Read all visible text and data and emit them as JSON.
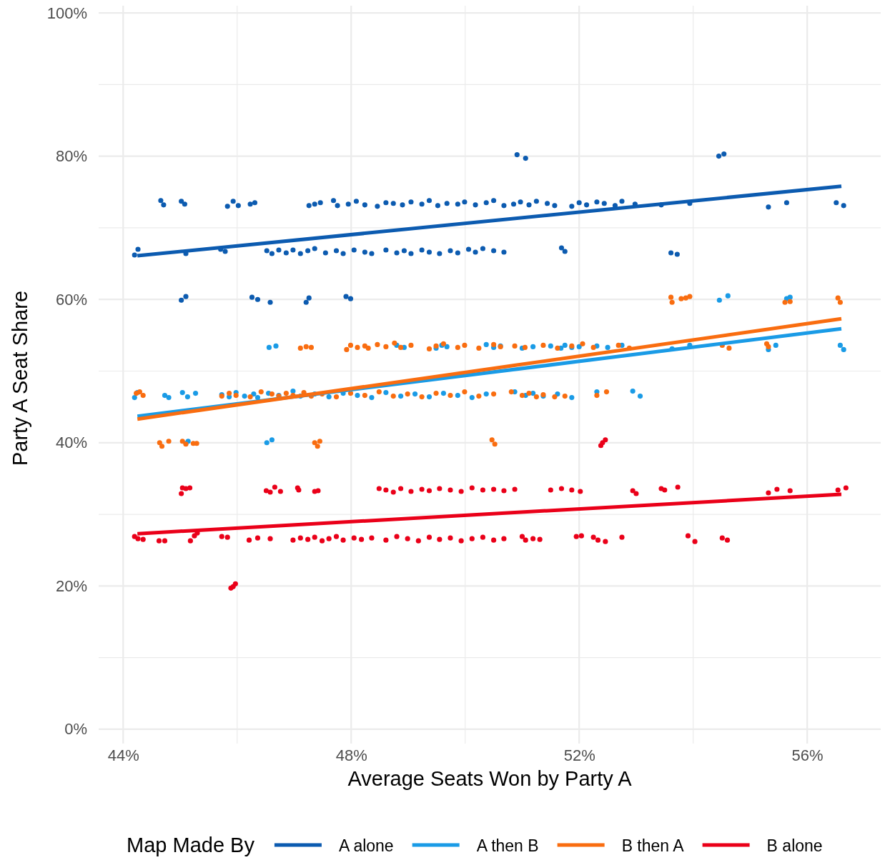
{
  "chart_data": {
    "type": "scatter",
    "xlabel": "Average Seats Won by Party A",
    "ylabel": "Party A Seat Share",
    "legend_title": "Map Made By",
    "legend": "bottom",
    "grid": true,
    "marker": "circle",
    "xlim": [
      43.57,
      57.29
    ],
    "ylim": [
      -2,
      101
    ],
    "xticks": [
      {
        "value": 44,
        "label": "44%"
      },
      {
        "value": 46,
        "label": null
      },
      {
        "value": 48,
        "label": "48%"
      },
      {
        "value": 50,
        "label": null
      },
      {
        "value": 52,
        "label": "52%"
      },
      {
        "value": 54,
        "label": null
      },
      {
        "value": 56,
        "label": "56%"
      }
    ],
    "yticks": [
      {
        "value": 0,
        "label": "0%"
      },
      {
        "value": 10,
        "label": null
      },
      {
        "value": 20,
        "label": "20%"
      },
      {
        "value": 30,
        "label": null
      },
      {
        "value": 40,
        "label": "40%"
      },
      {
        "value": 50,
        "label": null
      },
      {
        "value": 60,
        "label": "60%"
      },
      {
        "value": 70,
        "label": null
      },
      {
        "value": 80,
        "label": "80%"
      },
      {
        "value": 90,
        "label": null
      },
      {
        "value": 100,
        "label": "100%"
      }
    ],
    "series": [
      {
        "name": "A alone",
        "color": "#0c5bb0",
        "x": [
          50.91,
          51.06,
          54.45,
          54.54,
          44.66,
          44.71,
          45.02,
          45.08,
          45.83,
          45.93,
          46.02,
          46.23,
          46.31,
          47.26,
          47.36,
          47.46,
          47.69,
          47.76,
          47.95,
          48.09,
          48.24,
          48.46,
          48.61,
          48.74,
          48.9,
          49.05,
          49.24,
          49.37,
          49.52,
          49.68,
          49.87,
          49.99,
          50.18,
          50.37,
          50.5,
          50.68,
          50.85,
          50.97,
          51.12,
          51.25,
          51.44,
          51.57,
          51.87,
          52,
          52.13,
          52.31,
          52.44,
          52.63,
          52.75,
          52.98,
          53.44,
          53.94,
          55.32,
          55.64,
          56.51,
          56.64,
          44.2,
          44.26,
          45.1,
          45.71,
          45.79,
          46.52,
          46.61,
          46.73,
          46.86,
          46.98,
          47.11,
          47.24,
          47.36,
          47.55,
          47.74,
          47.86,
          48.05,
          48.24,
          48.36,
          48.61,
          48.8,
          48.93,
          49.05,
          49.24,
          49.37,
          49.55,
          49.74,
          49.87,
          50.06,
          50.18,
          50.31,
          50.5,
          50.68,
          51.69,
          51.75,
          53.61,
          53.72,
          45.02,
          45.1,
          46.26,
          46.36,
          46.58,
          47.21,
          47.26,
          47.91,
          47.99
        ],
        "values": [
          80.2,
          79.7,
          80,
          80.3,
          73.8,
          73.2,
          73.7,
          73.3,
          73,
          73.7,
          73.1,
          73.3,
          73.5,
          73.1,
          73.3,
          73.5,
          73.8,
          73.1,
          73.3,
          73.7,
          73.2,
          73,
          73.5,
          73.4,
          73.2,
          73.6,
          73.3,
          73.8,
          73.1,
          73.4,
          73.3,
          73.6,
          73.2,
          73.5,
          73.8,
          73.1,
          73.3,
          73.6,
          73.2,
          73.7,
          73.4,
          73.1,
          73,
          73.5,
          73.2,
          73.6,
          73.4,
          73.1,
          73.7,
          73.3,
          73.2,
          73.4,
          72.9,
          73.5,
          73.5,
          73.1,
          66.2,
          67,
          66.4,
          67,
          66.7,
          66.8,
          66.4,
          66.9,
          66.5,
          66.9,
          66.4,
          66.8,
          67.1,
          66.5,
          66.8,
          66.4,
          66.9,
          66.6,
          66.4,
          66.9,
          66.5,
          66.8,
          66.4,
          66.9,
          66.6,
          66.4,
          66.8,
          66.5,
          67,
          66.6,
          67.1,
          66.8,
          66.6,
          67.2,
          66.7,
          66.5,
          66.3,
          59.9,
          60.4,
          60.3,
          60,
          59.6,
          59.6,
          60.2,
          60.4,
          60.1
        ]
      },
      {
        "name": "A then B",
        "color": "#1a9be6",
        "x": [
          54.46,
          54.61,
          55.64,
          55.7,
          46.56,
          46.68,
          48.8,
          48.93,
          49.49,
          49.59,
          49.68,
          50.37,
          50.5,
          50.62,
          51,
          51.19,
          51.5,
          51.68,
          51.75,
          51.87,
          52,
          52.31,
          52.5,
          52.75,
          53.63,
          53.94,
          55.32,
          55.45,
          56.58,
          56.64,
          44.2,
          44.25,
          44.73,
          44.8,
          45.04,
          45.13,
          45.27,
          45.73,
          45.86,
          45.98,
          46.13,
          46.29,
          46.36,
          46.55,
          46.73,
          46.98,
          47.11,
          47.36,
          47.61,
          47.86,
          48.11,
          48.36,
          48.61,
          48.87,
          49.12,
          49.37,
          49.62,
          49.87,
          50.12,
          50.37,
          50.87,
          51.06,
          51.19,
          51.37,
          51.62,
          51.87,
          52.31,
          52.94,
          53.07,
          45.1,
          45.14,
          46.52,
          46.61
        ],
        "values": [
          59.9,
          60.5,
          60.1,
          60.3,
          53.3,
          53.5,
          53.6,
          53.3,
          53.2,
          53.6,
          53.4,
          53.7,
          53.3,
          53.5,
          53.2,
          53.4,
          53.5,
          53.2,
          53.6,
          53.3,
          53.4,
          53.5,
          53.3,
          53.6,
          53.1,
          53.6,
          53,
          53.6,
          53.6,
          53,
          46.3,
          47,
          46.6,
          46.3,
          47,
          46.4,
          46.9,
          46.7,
          46.4,
          47,
          46.5,
          46.8,
          46.3,
          46.9,
          46.6,
          47.2,
          46.5,
          46.8,
          46.4,
          46.9,
          46.6,
          46.3,
          47,
          46.5,
          46.8,
          46.4,
          46.9,
          46.6,
          46.3,
          46.8,
          47.1,
          46.6,
          46.9,
          46.5,
          46.8,
          46.3,
          47.1,
          47.2,
          46.5,
          39.9,
          40.2,
          40,
          40.4
        ]
      },
      {
        "name": "B then A",
        "color": "#f96d10",
        "x": [
          53.61,
          53.63,
          53.79,
          53.87,
          53.94,
          55.61,
          55.7,
          56.54,
          56.58,
          47.11,
          47.21,
          47.3,
          47.92,
          47.99,
          48.11,
          48.24,
          48.3,
          48.46,
          48.61,
          48.76,
          48.87,
          49.05,
          49.37,
          49.49,
          49.62,
          49.87,
          49.99,
          50.24,
          50.5,
          50.62,
          50.87,
          51.05,
          51.37,
          51.62,
          51.87,
          52.06,
          52.25,
          52.69,
          52.88,
          54.51,
          54.63,
          55.29,
          55.32,
          44.23,
          44.29,
          44.35,
          45.73,
          45.86,
          45.98,
          46.23,
          46.42,
          46.61,
          46.73,
          46.86,
          46.98,
          47.17,
          47.3,
          47.49,
          47.74,
          47.99,
          48.24,
          48.49,
          48.74,
          48.99,
          49.24,
          49.49,
          49.74,
          49.99,
          50.24,
          50.5,
          50.81,
          51,
          51.12,
          51.25,
          51.37,
          51.57,
          51.75,
          52.31,
          52.48,
          44.64,
          44.68,
          44.8,
          45.04,
          45.1,
          45.23,
          45.29,
          47.36,
          47.41,
          47.45,
          50.47,
          50.52
        ],
        "values": [
          60.3,
          59.6,
          60.1,
          60.2,
          60.4,
          59.6,
          59.7,
          60.2,
          59.6,
          53.2,
          53.4,
          53.3,
          53,
          53.6,
          53.3,
          53.5,
          53.2,
          53.7,
          53.4,
          53.9,
          53.3,
          53.6,
          53.1,
          53.5,
          53.8,
          53.3,
          53.6,
          53.2,
          53.7,
          53.4,
          53.5,
          53.3,
          53.6,
          53.2,
          53.5,
          53.8,
          53.3,
          53.6,
          53.2,
          53.6,
          53.2,
          53.8,
          53.4,
          46.9,
          47.1,
          46.6,
          46.5,
          46.9,
          46.6,
          46.4,
          47.1,
          46.8,
          46.5,
          46.9,
          46.6,
          47,
          46.5,
          46.8,
          46.4,
          46.9,
          46.6,
          47.1,
          46.5,
          46.8,
          46.4,
          46.9,
          46.6,
          47.1,
          46.5,
          46.8,
          47.1,
          46.6,
          46.9,
          46.4,
          46.7,
          46.4,
          46.5,
          46.6,
          47.1,
          40,
          39.5,
          40.2,
          40.2,
          39.8,
          39.9,
          39.9,
          40,
          39.5,
          40.2,
          40.4,
          39.8
        ]
      },
      {
        "name": "B alone",
        "color": "#ea0019",
        "x": [
          52.38,
          52.41,
          52.46,
          45.02,
          45.04,
          45.1,
          45.17,
          46.51,
          46.58,
          46.66,
          46.76,
          47.06,
          47.08,
          47.36,
          47.42,
          48.49,
          48.61,
          48.74,
          48.87,
          49.05,
          49.24,
          49.37,
          49.55,
          49.74,
          49.93,
          50.12,
          50.31,
          50.5,
          50.68,
          50.87,
          51.5,
          51.69,
          51.87,
          52.02,
          52.94,
          53,
          53.44,
          53.5,
          53.73,
          55.32,
          55.47,
          55.7,
          56.54,
          56.68,
          44.2,
          44.26,
          44.35,
          44.63,
          44.73,
          45.18,
          45.25,
          45.3,
          45.73,
          45.83,
          46.21,
          46.36,
          46.58,
          46.98,
          47.11,
          47.24,
          47.36,
          47.49,
          47.61,
          47.74,
          47.86,
          48.05,
          48.18,
          48.36,
          48.61,
          48.8,
          48.99,
          49.18,
          49.37,
          49.55,
          49.74,
          49.93,
          50.12,
          50.31,
          50.5,
          50.68,
          51,
          51.06,
          51.19,
          51.31,
          51.95,
          52.04,
          52.25,
          52.33,
          52.46,
          52.75,
          53.91,
          54.03,
          54.51,
          54.6,
          45.89,
          45.93,
          45.97
        ],
        "values": [
          39.6,
          40,
          40.4,
          32.9,
          33.7,
          33.6,
          33.7,
          33.3,
          33.1,
          33.8,
          33.2,
          33.7,
          33.4,
          33.2,
          33.3,
          33.6,
          33.4,
          33.1,
          33.6,
          33.2,
          33.5,
          33.3,
          33.6,
          33.4,
          33.2,
          33.7,
          33.4,
          33.5,
          33.3,
          33.5,
          33.4,
          33.6,
          33.4,
          33.2,
          33.3,
          32.9,
          33.6,
          33.4,
          33.8,
          33,
          33.5,
          33.3,
          33.4,
          33.7,
          26.9,
          26.6,
          26.5,
          26.3,
          26.3,
          26.3,
          27,
          27.4,
          26.9,
          26.8,
          26.4,
          26.7,
          26.6,
          26.4,
          26.7,
          26.5,
          26.8,
          26.3,
          26.6,
          26.9,
          26.4,
          26.7,
          26.5,
          26.7,
          26.4,
          26.9,
          26.6,
          26.3,
          26.8,
          26.5,
          26.7,
          26.3,
          26.6,
          26.8,
          26.4,
          26.6,
          26.9,
          26.4,
          26.6,
          26.5,
          26.9,
          27,
          26.8,
          26.4,
          26.2,
          26.8,
          27,
          26.2,
          26.7,
          26.4,
          19.7,
          19.9,
          20.3
        ]
      },
      {
        "type": "line",
        "marker": "none",
        "color": "#0c5bb0",
        "x": [
          44.25,
          56.6
        ],
        "values": [
          66.1,
          75.8
        ]
      },
      {
        "type": "line",
        "marker": "none",
        "color": "#1a9be6",
        "x": [
          44.25,
          56.6
        ],
        "values": [
          43.7,
          55.9
        ]
      },
      {
        "type": "line",
        "marker": "none",
        "color": "#f96d10",
        "x": [
          44.25,
          56.6
        ],
        "values": [
          43.3,
          57.3
        ]
      },
      {
        "type": "line",
        "marker": "none",
        "color": "#ea0019",
        "x": [
          44.25,
          56.6
        ],
        "values": [
          27.3,
          32.8
        ]
      }
    ]
  }
}
